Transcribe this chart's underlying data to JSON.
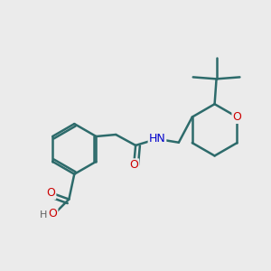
{
  "background_color": "#ebebeb",
  "bond_color": "#2d6b6b",
  "bond_width": 1.8,
  "atom_colors": {
    "O": "#cc0000",
    "N": "#0000cc",
    "H": "#606060",
    "C": "#2d6b6b"
  },
  "font_size": 9,
  "figsize": [
    3.0,
    3.0
  ],
  "dpi": 100
}
